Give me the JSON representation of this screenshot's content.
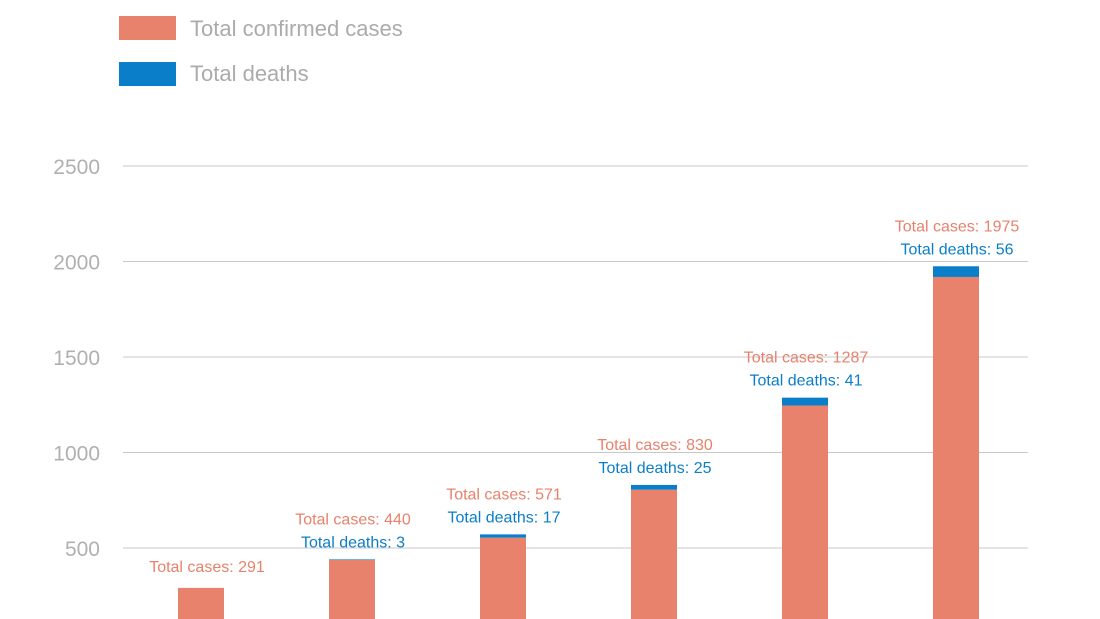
{
  "chart_data": {
    "type": "bar",
    "stacked": true,
    "title": "",
    "xlabel": "",
    "ylabel": "",
    "categories": [
      "",
      "",
      "",
      "",
      "",
      ""
    ],
    "series": [
      {
        "name": "Total confirmed cases",
        "color": "#e8826c",
        "values": [
          291,
          437,
          554,
          805,
          1246,
          1919
        ]
      },
      {
        "name": "Total deaths",
        "color": "#0a7ec9",
        "values": [
          0,
          3,
          17,
          25,
          41,
          56
        ]
      }
    ],
    "ylim": [
      128,
      2500
    ],
    "yticks": [
      500,
      1000,
      1500,
      2000,
      2500
    ],
    "grid": true,
    "legend_position": "top-left",
    "annotations": [
      {
        "cases_label": "Total cases: 291"
      },
      {
        "cases_label": "Total cases: 440",
        "deaths_label": "Total deaths: 3"
      },
      {
        "cases_label": "Total cases: 571",
        "deaths_label": "Total deaths: 17"
      },
      {
        "cases_label": "Total cases: 830",
        "deaths_label": "Total deaths: 25"
      },
      {
        "cases_label": "Total cases: 1287",
        "deaths_label": "Total deaths: 41"
      },
      {
        "cases_label": "Total cases: 1975",
        "deaths_label": "Total deaths: 56"
      }
    ]
  }
}
